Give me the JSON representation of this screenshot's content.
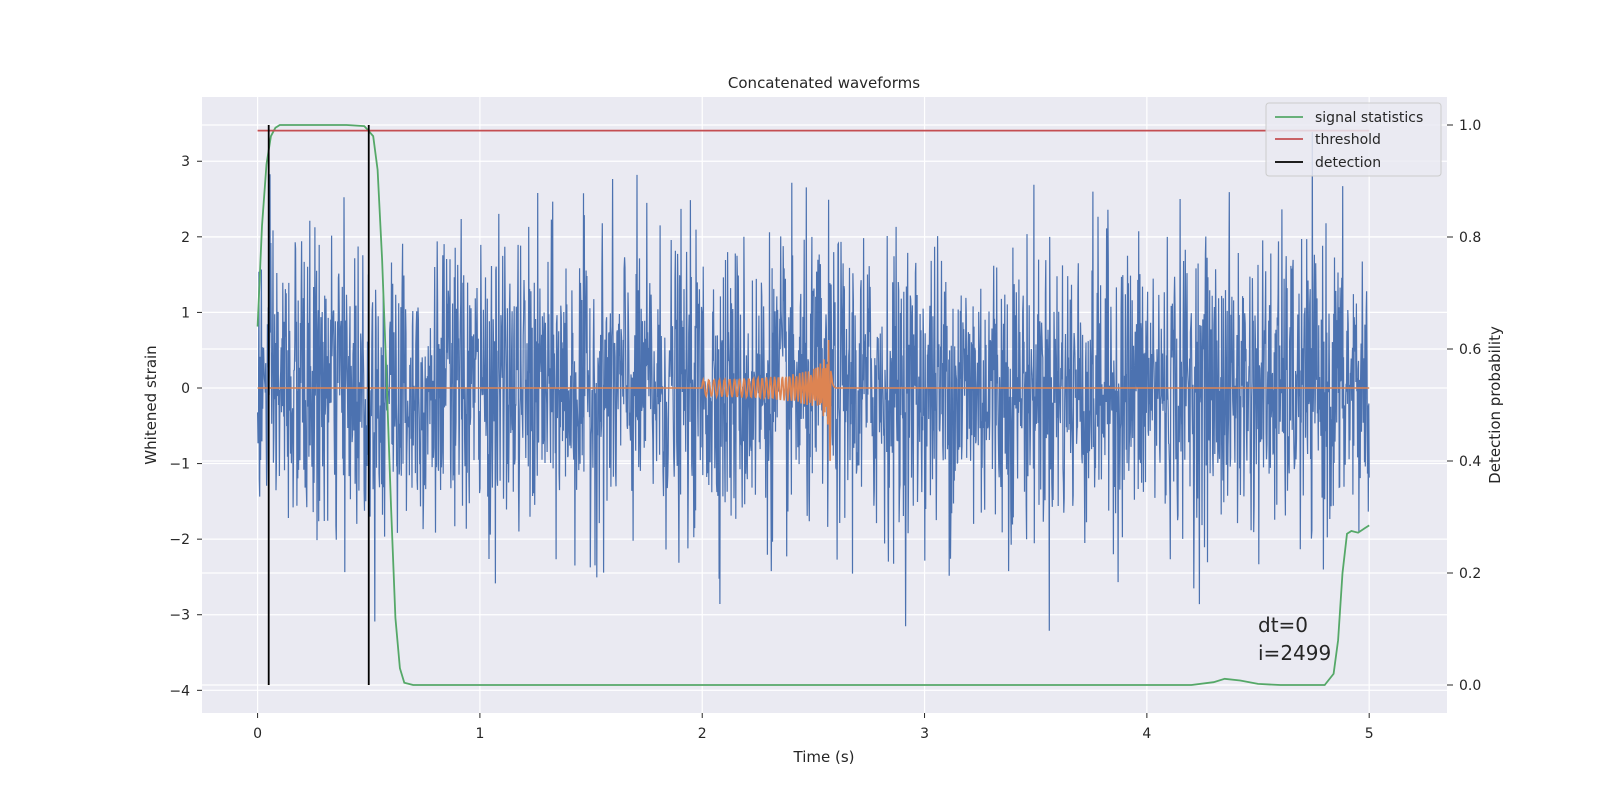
{
  "chart_data": {
    "type": "line",
    "title": "Concatenated waveforms",
    "xlabel": "Time (s)",
    "ylabel": "Whitened strain",
    "y2label": "Detection probability",
    "xlim": [
      -0.25,
      5.35
    ],
    "ylim": [
      -4.3,
      3.85
    ],
    "y2lim": [
      -0.05,
      1.05
    ],
    "xticks": [
      0,
      1,
      2,
      3,
      4,
      5
    ],
    "yticks": [
      -4,
      -3,
      -2,
      -1,
      0,
      1,
      2,
      3
    ],
    "y2ticks": [
      0.0,
      0.2,
      0.4,
      0.6,
      0.8,
      1.0
    ],
    "y2ticklabels": [
      "0.0",
      "0.2",
      "0.4",
      "0.6",
      "0.8",
      "1.0"
    ],
    "grid": true,
    "legend_position": "top-right",
    "colors": {
      "background": "#eaeaf2",
      "noise": "#4c72b0",
      "waveform": "#dd8452",
      "statistic": "#55a868",
      "threshold": "#c44e52",
      "detection": "#000000"
    },
    "noise_series": {
      "axis": "left",
      "t_start": 0.0,
      "t_end": 5.0,
      "typical_amplitude": 1.0,
      "envelope_min": -3.4,
      "envelope_max": 3.45
    },
    "waveform_series": {
      "axis": "left",
      "t_start": 0.0,
      "t_end": 5.0,
      "chirp_start": 2.0,
      "chirp_merger": 2.58,
      "peak_amplitude": 1.1
    },
    "statistic_series": {
      "axis": "right",
      "points": [
        [
          0.0,
          0.64
        ],
        [
          0.02,
          0.82
        ],
        [
          0.04,
          0.93
        ],
        [
          0.06,
          0.98
        ],
        [
          0.08,
          0.995
        ],
        [
          0.1,
          1.0
        ],
        [
          0.2,
          1.0
        ],
        [
          0.3,
          1.0
        ],
        [
          0.4,
          1.0
        ],
        [
          0.48,
          0.998
        ],
        [
          0.52,
          0.98
        ],
        [
          0.54,
          0.92
        ],
        [
          0.56,
          0.76
        ],
        [
          0.58,
          0.55
        ],
        [
          0.6,
          0.32
        ],
        [
          0.62,
          0.12
        ],
        [
          0.64,
          0.03
        ],
        [
          0.66,
          0.004
        ],
        [
          0.7,
          0.0
        ],
        [
          1.0,
          0.0
        ],
        [
          2.0,
          0.0
        ],
        [
          3.0,
          0.0
        ],
        [
          4.0,
          0.0
        ],
        [
          4.2,
          0.0
        ],
        [
          4.3,
          0.005
        ],
        [
          4.35,
          0.011
        ],
        [
          4.42,
          0.008
        ],
        [
          4.5,
          0.002
        ],
        [
          4.6,
          0.0
        ],
        [
          4.8,
          0.0
        ],
        [
          4.84,
          0.02
        ],
        [
          4.86,
          0.08
        ],
        [
          4.88,
          0.2
        ],
        [
          4.9,
          0.27
        ],
        [
          4.92,
          0.275
        ],
        [
          4.95,
          0.272
        ],
        [
          4.98,
          0.28
        ],
        [
          5.0,
          0.285
        ]
      ]
    },
    "threshold_series": {
      "axis": "right",
      "value": 0.99,
      "x_start": 0.0,
      "x_end": 5.0
    },
    "detection_series": {
      "axis": "right",
      "times": [
        0.05,
        0.5
      ],
      "y_range": [
        0.0,
        1.0
      ]
    },
    "legend": [
      {
        "label": "signal statistics",
        "color": "#55a868"
      },
      {
        "label": "threshold",
        "color": "#c44e52"
      },
      {
        "label": "detection",
        "color": "#000000"
      }
    ],
    "annotations": [
      "dt=0",
      "i=2499"
    ]
  }
}
